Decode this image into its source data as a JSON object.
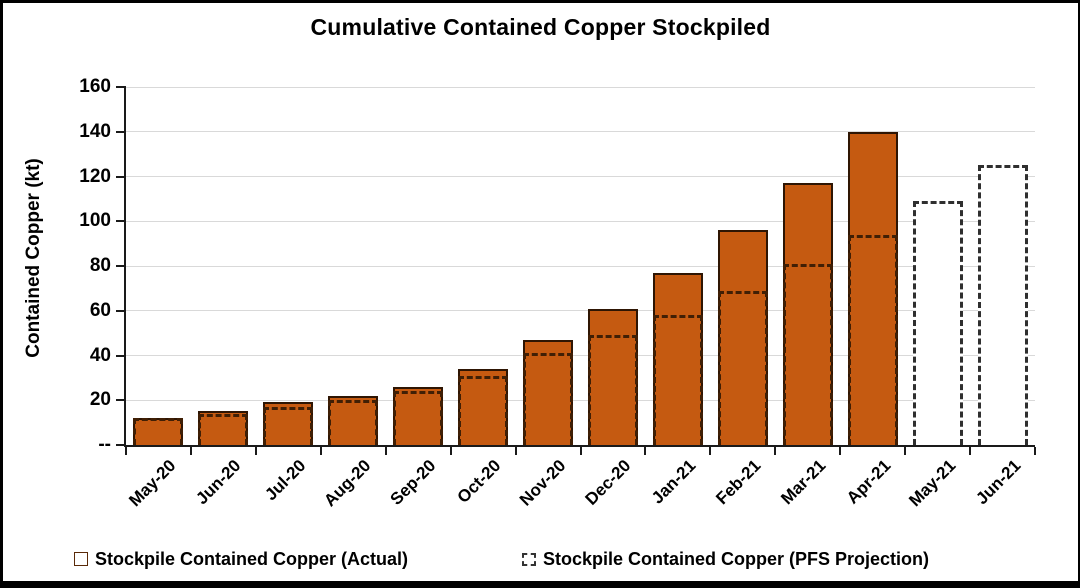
{
  "chart": {
    "title": "Cumulative Contained Copper Stockpiled"
  },
  "chart_data": {
    "type": "bar",
    "title": "Cumulative Contained Copper Stockpiled",
    "xlabel": "",
    "ylabel": "Contained Copper (kt)",
    "categories": [
      "May-20",
      "Jun-20",
      "Jul-20",
      "Aug-20",
      "Sep-20",
      "Oct-20",
      "Nov-20",
      "Dec-20",
      "Jan-21",
      "Feb-21",
      "Mar-21",
      "Apr-21",
      "May-21",
      "Jun-21"
    ],
    "series": [
      {
        "name": "Stockpile Contained Copper (Actual)",
        "style": "solid",
        "color": "#C55A11",
        "values": [
          12,
          15,
          19,
          22,
          26,
          34,
          47,
          61,
          77,
          96,
          117,
          140,
          null,
          null
        ]
      },
      {
        "name": "Stockpile Contained Copper (PFS Projection)",
        "style": "dashed",
        "color": "#2f2f2f",
        "values": [
          12,
          14,
          17,
          20,
          24,
          31,
          41,
          49,
          58,
          69,
          81,
          94,
          109,
          125
        ]
      }
    ],
    "ylim": [
      0,
      160
    ],
    "ytick_step": 20,
    "y_zero_label": "--",
    "grid": true,
    "legend_position": "bottom"
  },
  "colors": {
    "bar_fill": "#C55A11",
    "bar_border": "#2e1503",
    "projection_dash": "#2f2f2f",
    "gridline": "#d9d9d9",
    "axis": "#1a1a1a"
  }
}
